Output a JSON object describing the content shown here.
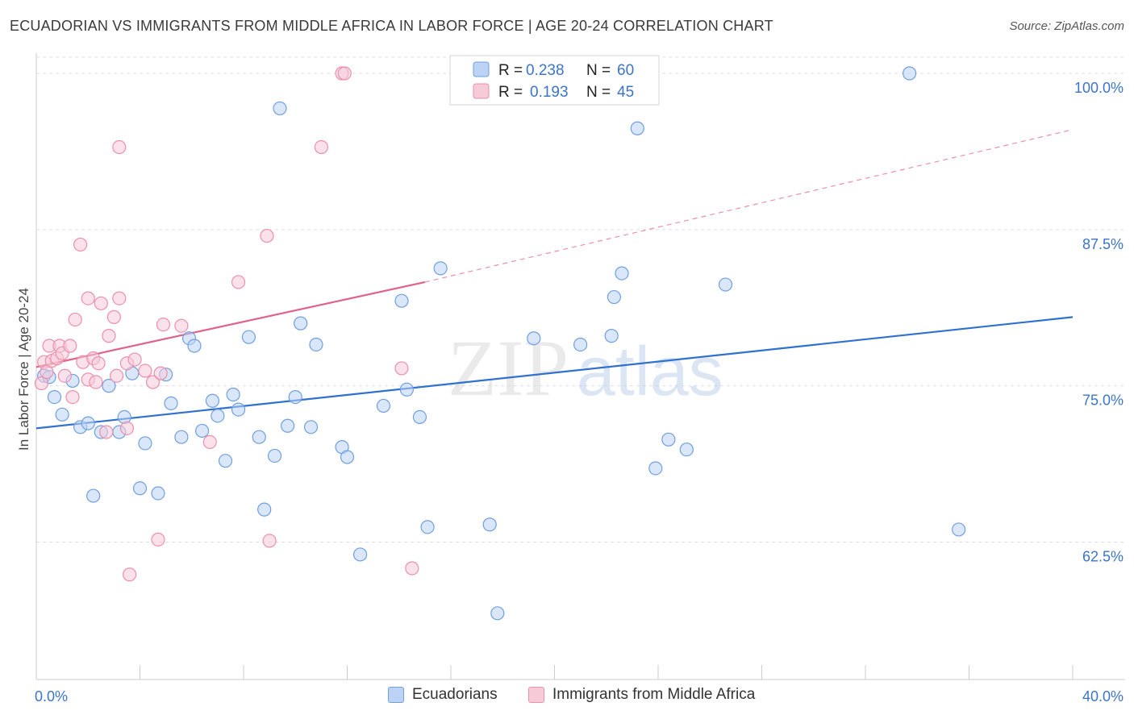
{
  "title": "ECUADORIAN VS IMMIGRANTS FROM MIDDLE AFRICA IN LABOR FORCE | AGE 20-24 CORRELATION CHART",
  "source": "Source: ZipAtlas.com",
  "watermark": {
    "zip": "ZIP",
    "atlas": "atlas"
  },
  "legend_top": [
    {
      "r_label": "R =",
      "r_value": "0.238",
      "n_label": "N =",
      "n_value": "60"
    },
    {
      "r_label": "R =",
      "r_value": "0.193",
      "n_label": "N =",
      "n_value": "45"
    }
  ],
  "chart_data": {
    "type": "scatter",
    "title": "ECUADORIAN VS IMMIGRANTS FROM MIDDLE AFRICA IN LABOR FORCE | AGE 20-24 CORRELATION CHART",
    "xlabel": "",
    "ylabel": "In Labor Force | Age 20-24",
    "xlim": [
      0,
      40
    ],
    "ylim": [
      51.5,
      102
    ],
    "x_tick_labels": [
      "0.0%",
      "40.0%"
    ],
    "y_ticks": [
      62.5,
      75.0,
      87.5,
      100.0
    ],
    "y_tick_labels": [
      "62.5%",
      "75.0%",
      "87.5%",
      "100.0%"
    ],
    "grid": true,
    "legend_position": "bottom",
    "colors": {
      "blue": "#6f9fe0",
      "blue_fill": "#bcd3f5",
      "blue_line": "#2f70d0",
      "pink": "#eb8fac",
      "pink_fill": "#f7cad8",
      "pink_line": "#e0628a",
      "accent_text": "#3b74c9"
    },
    "series": [
      {
        "name": "Ecuadorians",
        "color": "#6f9fe0",
        "points": [
          [
            0.3,
            75.8
          ],
          [
            0.5,
            75.7
          ],
          [
            0.7,
            74.1
          ],
          [
            1.0,
            72.7
          ],
          [
            1.4,
            75.4
          ],
          [
            1.7,
            71.7
          ],
          [
            2.0,
            72.0
          ],
          [
            2.2,
            66.2
          ],
          [
            2.5,
            71.3
          ],
          [
            2.8,
            75.0
          ],
          [
            3.2,
            71.3
          ],
          [
            3.4,
            72.5
          ],
          [
            3.7,
            76.0
          ],
          [
            4.0,
            66.8
          ],
          [
            4.2,
            70.4
          ],
          [
            4.7,
            66.4
          ],
          [
            5.0,
            75.9
          ],
          [
            5.2,
            73.6
          ],
          [
            5.6,
            70.9
          ],
          [
            5.9,
            78.8
          ],
          [
            6.1,
            78.2
          ],
          [
            6.4,
            71.4
          ],
          [
            6.8,
            73.8
          ],
          [
            7.0,
            72.6
          ],
          [
            7.3,
            69.0
          ],
          [
            7.6,
            74.3
          ],
          [
            7.8,
            73.1
          ],
          [
            8.2,
            78.9
          ],
          [
            8.6,
            70.9
          ],
          [
            8.8,
            65.1
          ],
          [
            9.2,
            69.4
          ],
          [
            9.4,
            97.2
          ],
          [
            9.7,
            71.8
          ],
          [
            10.0,
            74.1
          ],
          [
            10.2,
            80.0
          ],
          [
            10.6,
            71.7
          ],
          [
            10.8,
            78.3
          ],
          [
            11.8,
            70.1
          ],
          [
            12.0,
            69.3
          ],
          [
            12.5,
            61.5
          ],
          [
            13.4,
            73.4
          ],
          [
            14.1,
            81.8
          ],
          [
            14.3,
            74.7
          ],
          [
            14.8,
            72.5
          ],
          [
            15.1,
            63.7
          ],
          [
            15.6,
            84.4
          ],
          [
            17.5,
            63.9
          ],
          [
            17.8,
            56.8
          ],
          [
            19.2,
            78.8
          ],
          [
            21.0,
            78.3
          ],
          [
            22.2,
            79.0
          ],
          [
            22.3,
            82.1
          ],
          [
            22.6,
            84.0
          ],
          [
            23.2,
            95.6
          ],
          [
            23.9,
            68.4
          ],
          [
            24.4,
            70.7
          ],
          [
            25.1,
            69.9
          ],
          [
            26.6,
            83.1
          ],
          [
            33.7,
            100.0
          ],
          [
            35.6,
            63.5
          ]
        ],
        "trend": {
          "x1": 0,
          "y1": 71.6,
          "x2": 40,
          "y2": 80.5
        }
      },
      {
        "name": "Immigrants from Middle Africa",
        "color": "#eb8fac",
        "points": [
          [
            0.2,
            75.2
          ],
          [
            0.3,
            76.9
          ],
          [
            0.4,
            76.1
          ],
          [
            0.5,
            78.2
          ],
          [
            0.6,
            77.0
          ],
          [
            0.8,
            77.2
          ],
          [
            0.9,
            78.2
          ],
          [
            1.0,
            77.6
          ],
          [
            1.1,
            75.8
          ],
          [
            1.3,
            78.2
          ],
          [
            1.4,
            74.1
          ],
          [
            1.5,
            80.3
          ],
          [
            1.7,
            86.3
          ],
          [
            1.8,
            76.9
          ],
          [
            2.0,
            75.5
          ],
          [
            2.0,
            82.0
          ],
          [
            2.2,
            77.2
          ],
          [
            2.3,
            75.3
          ],
          [
            2.4,
            76.8
          ],
          [
            2.5,
            81.6
          ],
          [
            2.7,
            71.3
          ],
          [
            2.8,
            79.0
          ],
          [
            3.0,
            80.5
          ],
          [
            3.1,
            75.8
          ],
          [
            3.2,
            82.0
          ],
          [
            3.2,
            94.1
          ],
          [
            3.5,
            71.6
          ],
          [
            3.5,
            76.8
          ],
          [
            3.6,
            59.9
          ],
          [
            3.8,
            77.1
          ],
          [
            4.2,
            76.2
          ],
          [
            4.5,
            75.3
          ],
          [
            4.7,
            62.7
          ],
          [
            4.8,
            76.0
          ],
          [
            4.9,
            79.9
          ],
          [
            5.6,
            79.8
          ],
          [
            6.7,
            70.5
          ],
          [
            7.8,
            83.3
          ],
          [
            8.9,
            87.0
          ],
          [
            9.0,
            62.6
          ],
          [
            11.0,
            94.1
          ],
          [
            11.8,
            100.0
          ],
          [
            11.9,
            100.0
          ],
          [
            14.5,
            60.4
          ],
          [
            14.1,
            76.4
          ]
        ],
        "trend": {
          "x1": 0,
          "y1": 76.5,
          "x2": 15,
          "y2": 83.3
        },
        "trend_extension": {
          "x1": 15,
          "y1": 83.3,
          "x2": 40,
          "y2": 95.5
        }
      }
    ]
  },
  "legend_bottom": [
    "Ecuadorians",
    "Immigrants from Middle Africa"
  ]
}
